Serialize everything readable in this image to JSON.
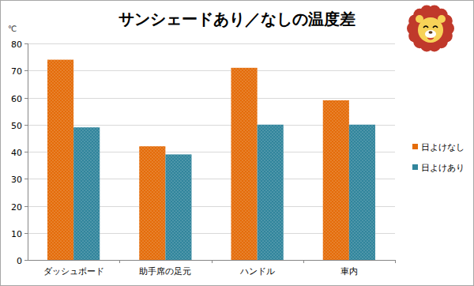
{
  "chart_data": {
    "type": "bar",
    "title": "サンシェードあり／なしの温度差",
    "y_label": "℃",
    "categories": [
      "ダッシュボード",
      "助手席の足元",
      "ハンドル",
      "車内"
    ],
    "series": [
      {
        "name": "日よけなし",
        "color": "#e46c0a",
        "values": [
          74,
          42,
          71,
          59
        ]
      },
      {
        "name": "日よけあり",
        "color": "#31859c",
        "values": [
          49,
          39,
          50,
          50
        ]
      }
    ],
    "ylim": [
      0,
      80
    ],
    "yticks": [
      0,
      10,
      20,
      30,
      40,
      50,
      60,
      70,
      80
    ],
    "grid": true,
    "legend": "right"
  }
}
